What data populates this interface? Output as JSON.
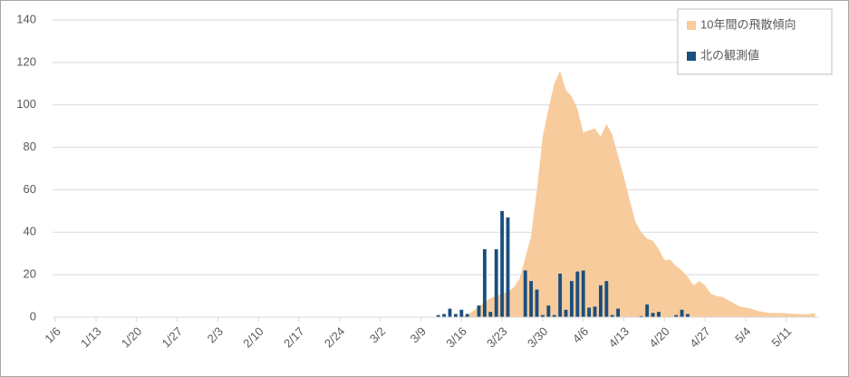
{
  "chart_data": {
    "type": "area-bar",
    "categories": [
      "1/6",
      null,
      null,
      null,
      null,
      null,
      null,
      "1/13",
      null,
      null,
      null,
      null,
      null,
      null,
      "1/20",
      null,
      null,
      null,
      null,
      null,
      null,
      "1/27",
      null,
      null,
      null,
      null,
      null,
      null,
      "2/3",
      null,
      null,
      null,
      null,
      null,
      null,
      "2/10",
      null,
      null,
      null,
      null,
      null,
      null,
      "2/17",
      null,
      null,
      null,
      null,
      null,
      null,
      "2/24",
      null,
      null,
      null,
      null,
      null,
      null,
      "3/2",
      null,
      null,
      null,
      null,
      null,
      null,
      "3/9",
      null,
      null,
      null,
      null,
      null,
      null,
      "3/16",
      null,
      null,
      null,
      null,
      null,
      null,
      "3/23",
      null,
      null,
      null,
      null,
      null,
      null,
      "3/30",
      null,
      null,
      null,
      null,
      null,
      null,
      "4/6",
      null,
      null,
      null,
      null,
      null,
      null,
      "4/13",
      null,
      null,
      null,
      null,
      null,
      null,
      "4/20",
      null,
      null,
      null,
      null,
      null,
      null,
      "4/27",
      null,
      null,
      null,
      null,
      null,
      null,
      "5/4",
      null,
      null,
      null,
      null,
      null,
      null,
      "5/11",
      null,
      null,
      null,
      null,
      null
    ],
    "series": [
      {
        "name": "10年間の飛散傾向",
        "color": "#f8cb9c",
        "kind": "area",
        "values": [
          0,
          0,
          0,
          0,
          0,
          0,
          0,
          0,
          0,
          0,
          0,
          0,
          0,
          0,
          0,
          0,
          0,
          0,
          0,
          0,
          0,
          0,
          0,
          0,
          0,
          0,
          0,
          0,
          0,
          0,
          0,
          0,
          0,
          0,
          0,
          0,
          0,
          0,
          0,
          0,
          0,
          0,
          0,
          0,
          0,
          0,
          0,
          0,
          0,
          0,
          0,
          0,
          0,
          0,
          0,
          0,
          0,
          0,
          0,
          0,
          0,
          0,
          0,
          0,
          0,
          0,
          0,
          0,
          0,
          0,
          0.5,
          1,
          3,
          5,
          7,
          9,
          10,
          11,
          12,
          14,
          18,
          28,
          38,
          60,
          85,
          98,
          110,
          116,
          107,
          104,
          98,
          87,
          88,
          89,
          85,
          91,
          86,
          76,
          66,
          55,
          45,
          40,
          37,
          36,
          32,
          27,
          27,
          24,
          22,
          19,
          15,
          17,
          15,
          11,
          10,
          9.5,
          8,
          6.5,
          5,
          4.5,
          4,
          3,
          2.5,
          2,
          2,
          2,
          1.8,
          1.6,
          1.5,
          1.3,
          1.5,
          1.8
        ]
      },
      {
        "name": "北の観測値",
        "color": "#1a4f7e",
        "kind": "bar",
        "values": [
          null,
          null,
          null,
          null,
          null,
          null,
          null,
          null,
          null,
          null,
          null,
          null,
          null,
          null,
          null,
          null,
          null,
          null,
          null,
          null,
          null,
          null,
          null,
          null,
          null,
          null,
          null,
          null,
          null,
          null,
          null,
          null,
          null,
          null,
          null,
          null,
          null,
          null,
          null,
          null,
          null,
          null,
          null,
          null,
          null,
          null,
          null,
          null,
          null,
          null,
          null,
          null,
          null,
          null,
          null,
          null,
          null,
          null,
          null,
          null,
          null,
          null,
          null,
          null,
          null,
          null,
          1,
          1.5,
          4,
          1.5,
          3.5,
          1.5,
          0,
          5.5,
          32,
          2.5,
          32,
          50,
          47,
          0,
          0,
          22,
          17,
          13,
          1,
          5.5,
          1,
          20.5,
          3.5,
          17,
          21.5,
          22,
          4.5,
          5,
          15,
          17,
          1,
          4,
          0,
          0,
          0,
          0.5,
          6,
          2,
          2.5,
          0,
          0,
          1,
          3.5,
          1.5,
          null,
          null,
          null,
          null,
          null,
          null,
          null,
          null,
          null,
          null,
          null,
          null,
          null,
          null,
          null,
          null,
          null,
          null,
          null,
          null,
          null,
          null
        ]
      }
    ],
    "ylim": [
      0,
      140
    ],
    "yticks": [
      0,
      20,
      40,
      60,
      80,
      100,
      120,
      140
    ],
    "grid": true,
    "legend": "top-right"
  }
}
